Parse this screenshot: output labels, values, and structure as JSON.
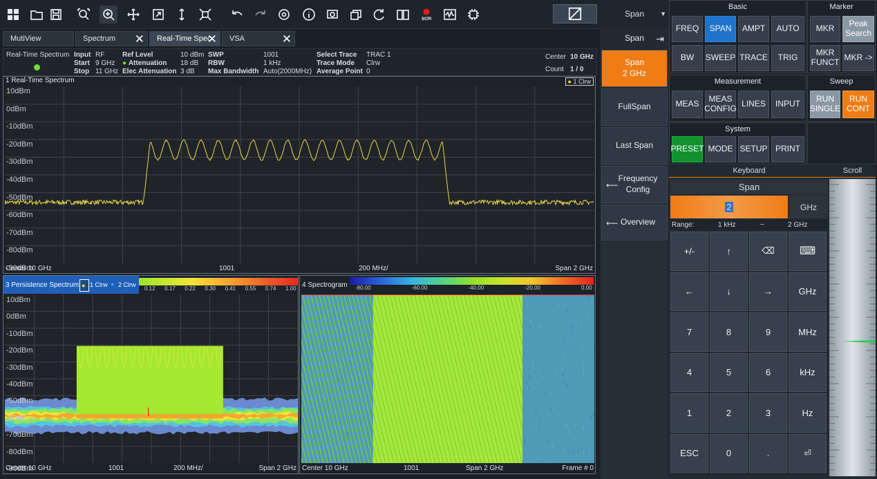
{
  "tabs": [
    {
      "label": "MutiView",
      "closable": false
    },
    {
      "label": "Spectrum",
      "closable": true
    },
    {
      "label": "Real-Time Spec",
      "closable": true,
      "selected": true
    },
    {
      "label": "VSA",
      "closable": true
    }
  ],
  "info": {
    "mode": "Real-Time Spectrum",
    "input_label": "Input",
    "input_val": "RF",
    "start_label": "Start",
    "start_val": "9 GHz",
    "stop_label": "Stop",
    "stop_val": "11 GHz",
    "reflevel_label": "Ref Level",
    "reflevel_val": "10 dBm",
    "atten_label": "Attenuation",
    "atten_val": "18 dB",
    "elec_label": "Elec Attenuation",
    "elec_val": "3 dB",
    "swp_label": "SWP",
    "swp_val": "1001",
    "rbw_label": "RBW",
    "rbw_val": "1 kHz",
    "maxbw_label": "Max Bandwidth",
    "maxbw_val": "Auto(2000MHz)",
    "seltrace_label": "Select Trace",
    "seltrace_val": "TRAC 1",
    "tracemode_label": "Trace Mode",
    "tracemode_val": "Clrw",
    "avgpt_label": "Average Point",
    "avgpt_val": "0",
    "center_label": "Center",
    "center_val": "10 GHz",
    "count_label": "Count",
    "count_val": "1 / 0"
  },
  "panel1": {
    "title": "1 Real-Time Spectrum",
    "legend": "1 Clrw",
    "ylabels": [
      "10dBm",
      "0dBm",
      "-10dBm",
      "-20dBm",
      "-30dBm",
      "-40dBm",
      "-50dBm",
      "-60dBm",
      "-70dBm",
      "-80dBm",
      "-90dBm"
    ],
    "foot_left": "Center 10 GHz",
    "foot_pts": "1001",
    "foot_div": "200 MHz/",
    "foot_right": "Span 2 GHz"
  },
  "panel3": {
    "title": "3 Persistence Spectrum",
    "legend1": "1 Clrw",
    "legend2": "2 Clrw",
    "scale": [
      "0.12",
      "0.17",
      "0.22",
      "0.30",
      "0.41",
      "0.55",
      "0.74",
      "1.00"
    ],
    "ylabels": [
      "10dBm",
      "0dBm",
      "-10dBm",
      "-20dBm",
      "-30dBm",
      "-40dBm",
      "-50dBm",
      "-60dBm",
      "-70dBm",
      "-80dBm",
      "-90dBm"
    ],
    "foot_left": "Center 10 GHz",
    "foot_pts": "1001",
    "foot_div": "200 MHz/",
    "foot_right": "Span 2 GHz"
  },
  "panel4": {
    "title": "4 Spectrogram",
    "scale": [
      "-80.00",
      "-60.00",
      "-40.00",
      "-20.00",
      "0.00"
    ],
    "foot_left": "Center 10 GHz",
    "foot_pts": "1001",
    "foot_span": "Span 2 GHz",
    "foot_right": "Frame # 0"
  },
  "softkeys": {
    "header": "Span",
    "span_label": "Span",
    "span_active_line1": "Span",
    "span_active_line2": "2 GHz",
    "fullspan": "FullSpan",
    "lastspan": "Last Span",
    "freqconfig_line1": "Frequency",
    "freqconfig_line2": "Config",
    "overview": "Overview"
  },
  "basic": {
    "title": "Basic",
    "buttons": [
      "FREQ",
      "SPAN",
      "AMPT",
      "AUTO",
      "BW",
      "SWEEP",
      "TRACE",
      "TRIG"
    ]
  },
  "marker": {
    "title": "Marker",
    "mkr": "MKR",
    "peak1": "Peak",
    "peak2": "Search",
    "funct1": "MKR",
    "funct2": "FUNCT",
    "mkrto": "MKR ->"
  },
  "measurement": {
    "title": "Measurement",
    "meas": "MEAS",
    "config1": "MEAS",
    "config2": "CONFIG",
    "lines": "LINES",
    "input": "INPUT"
  },
  "sweep": {
    "title": "Sweep",
    "single1": "RUN",
    "single2": "SINGLE",
    "cont1": "RUN",
    "cont2": "CONT"
  },
  "system": {
    "title": "System",
    "preset": "PRESET",
    "mode": "MODE",
    "setup": "SETUP",
    "print": "PRINT"
  },
  "keyboard": {
    "title": "Keyboard",
    "scroll": "Scroll",
    "field_title": "Span",
    "value": "2",
    "unit": "GHz",
    "range_label": "Range:",
    "range_min": "1 kHz",
    "range_sep": "~",
    "range_max": "2 GHz",
    "keys": [
      "+/-",
      "↑",
      "⌫",
      "⌨",
      "←",
      "↓",
      "→",
      "GHz",
      "7",
      "8",
      "9",
      "MHz",
      "4",
      "5",
      "6",
      "kHz",
      "1",
      "2",
      "3",
      "Hz",
      "ESC",
      "0",
      ".",
      "⏎"
    ]
  },
  "colors": {
    "accent_orange": "#f07c16",
    "accent_blue": "#2073c8",
    "trace_yellow": "#e8d84a",
    "preset_green": "#11922f"
  }
}
